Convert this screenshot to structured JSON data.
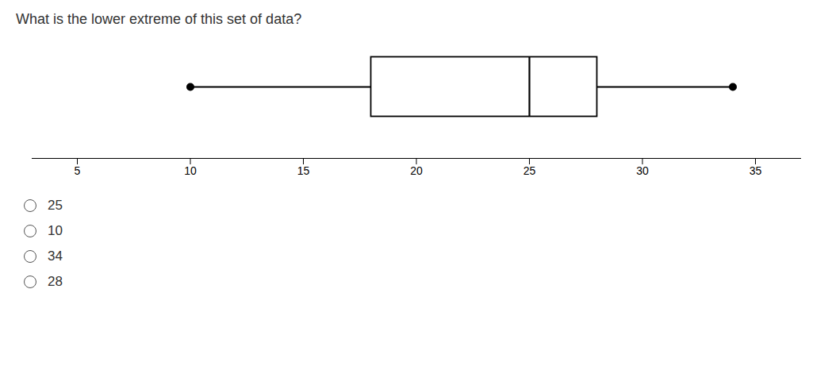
{
  "chart_data": {
    "type": "box",
    "title": "What is the lower extreme of this set of data?",
    "min": 10,
    "q1": 18,
    "median": 25,
    "q3": 28,
    "max": 34,
    "xlim": [
      3,
      37
    ],
    "xticks": [
      5,
      10,
      15,
      20,
      25,
      30,
      35
    ],
    "annotations": [
      "25",
      "10",
      "34",
      "28"
    ]
  }
}
